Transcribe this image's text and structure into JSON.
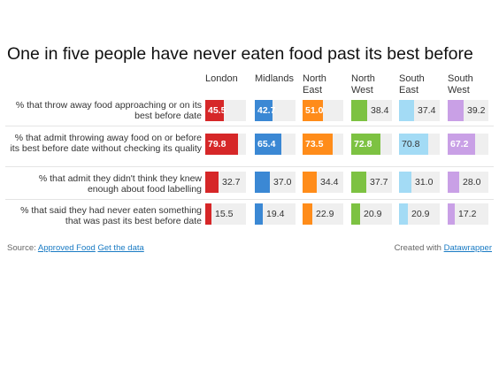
{
  "chart_data": {
    "type": "bar",
    "title": "One in five people have never eaten food past its best before",
    "columns": [
      "London",
      "Midlands",
      "North East",
      "North West",
      "South East",
      "South West"
    ],
    "column_colors": [
      "#d62728",
      "#3b88d4",
      "#ff8c1a",
      "#7dc242",
      "#a3dbf5",
      "#c9a0e6"
    ],
    "max": 100,
    "rows": [
      {
        "label": "% that throw away food approaching or on its best before date",
        "values": [
          45.5,
          42.7,
          51.0,
          38.4,
          37.4,
          39.2
        ]
      },
      {
        "label": "% that admit throwing away food on or before its best before date without checking its quality",
        "values": [
          79.8,
          65.4,
          73.5,
          72.8,
          70.8,
          67.2
        ]
      },
      {
        "label": "% that admit they didn't think they knew enough about food labelling",
        "values": [
          32.7,
          37.0,
          34.4,
          37.7,
          31.0,
          28.0
        ]
      },
      {
        "label": "% that said they had never eaten something that was past its best before date",
        "values": [
          15.5,
          19.4,
          22.9,
          20.9,
          20.9,
          17.2
        ]
      }
    ]
  },
  "footer": {
    "source_prefix": "Source:",
    "source_link": "Approved Food",
    "data_link": "Get the data",
    "credit_prefix": "Created with",
    "credit_link": "Datawrapper"
  }
}
